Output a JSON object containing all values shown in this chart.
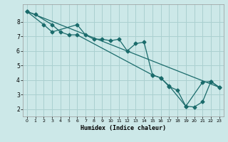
{
  "xlabel": "Humidex (Indice chaleur)",
  "bg_color": "#cce8e8",
  "grid_color": "#aad0d0",
  "line_color": "#1a6b6b",
  "xlim": [
    -0.5,
    23.5
  ],
  "ylim": [
    1.5,
    9.2
  ],
  "yticks": [
    2,
    3,
    4,
    5,
    6,
    7,
    8
  ],
  "xticks": [
    0,
    1,
    2,
    3,
    4,
    5,
    6,
    7,
    8,
    9,
    10,
    11,
    12,
    13,
    14,
    15,
    16,
    17,
    18,
    19,
    20,
    21,
    22,
    23
  ],
  "line1_x": [
    0,
    23
  ],
  "line1_y": [
    8.7,
    3.5
  ],
  "line2_x": [
    0,
    2,
    3,
    6,
    7,
    8,
    9,
    10,
    11,
    12,
    13,
    14,
    15,
    16,
    17,
    19,
    21,
    22,
    23
  ],
  "line2_y": [
    8.7,
    7.8,
    7.3,
    7.8,
    7.1,
    6.8,
    6.8,
    6.7,
    6.8,
    6.0,
    6.5,
    6.6,
    4.35,
    4.15,
    3.6,
    2.2,
    3.85,
    3.9,
    3.5
  ],
  "line3_x": [
    0,
    1,
    3,
    4,
    5,
    6,
    15,
    16,
    17,
    18,
    19,
    20,
    21,
    22,
    23
  ],
  "line3_y": [
    8.7,
    8.5,
    7.8,
    7.3,
    7.1,
    7.1,
    4.35,
    4.15,
    3.55,
    3.3,
    2.2,
    2.15,
    2.5,
    3.9,
    3.5
  ]
}
